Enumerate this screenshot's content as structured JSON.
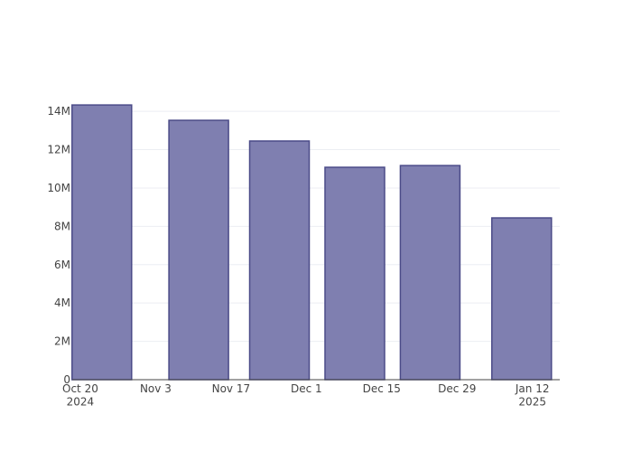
{
  "chart_data": {
    "type": "bar",
    "x": [
      "2024-10-24",
      "2024-11-11",
      "2024-11-26",
      "2024-12-10",
      "2024-12-24",
      "2025-01-10"
    ],
    "values": [
      14330000,
      13530000,
      12450000,
      11080000,
      11170000,
      8440000
    ],
    "color": "#7f7fb0",
    "edge_color": "#4b4b88",
    "xlim": [
      "2024-10-18T12:00",
      "2025-01-17T02:00"
    ],
    "xticks": [
      {
        "value": "2024-10-20",
        "label": "Oct 20\n2024"
      },
      {
        "value": "2024-11-03",
        "label": "Nov 3"
      },
      {
        "value": "2024-11-17",
        "label": "Nov 17"
      },
      {
        "value": "2024-12-01",
        "label": "Dec 1"
      },
      {
        "value": "2024-12-15",
        "label": "Dec 15"
      },
      {
        "value": "2024-12-29",
        "label": "Dec 29"
      },
      {
        "value": "2025-01-12",
        "label": "Jan 12\n2025"
      }
    ],
    "ylim": [
      0,
      15090000
    ],
    "yticks": [
      0,
      {
        "value": 2000000,
        "label": "2M"
      },
      {
        "value": 4000000,
        "label": "4M"
      },
      {
        "value": 6000000,
        "label": "6M"
      },
      {
        "value": 8000000,
        "label": "8M"
      },
      {
        "value": 10000000,
        "label": "10M"
      },
      {
        "value": 12000000,
        "label": "12M"
      },
      {
        "value": 14000000,
        "label": "14M"
      }
    ],
    "grid": true
  }
}
